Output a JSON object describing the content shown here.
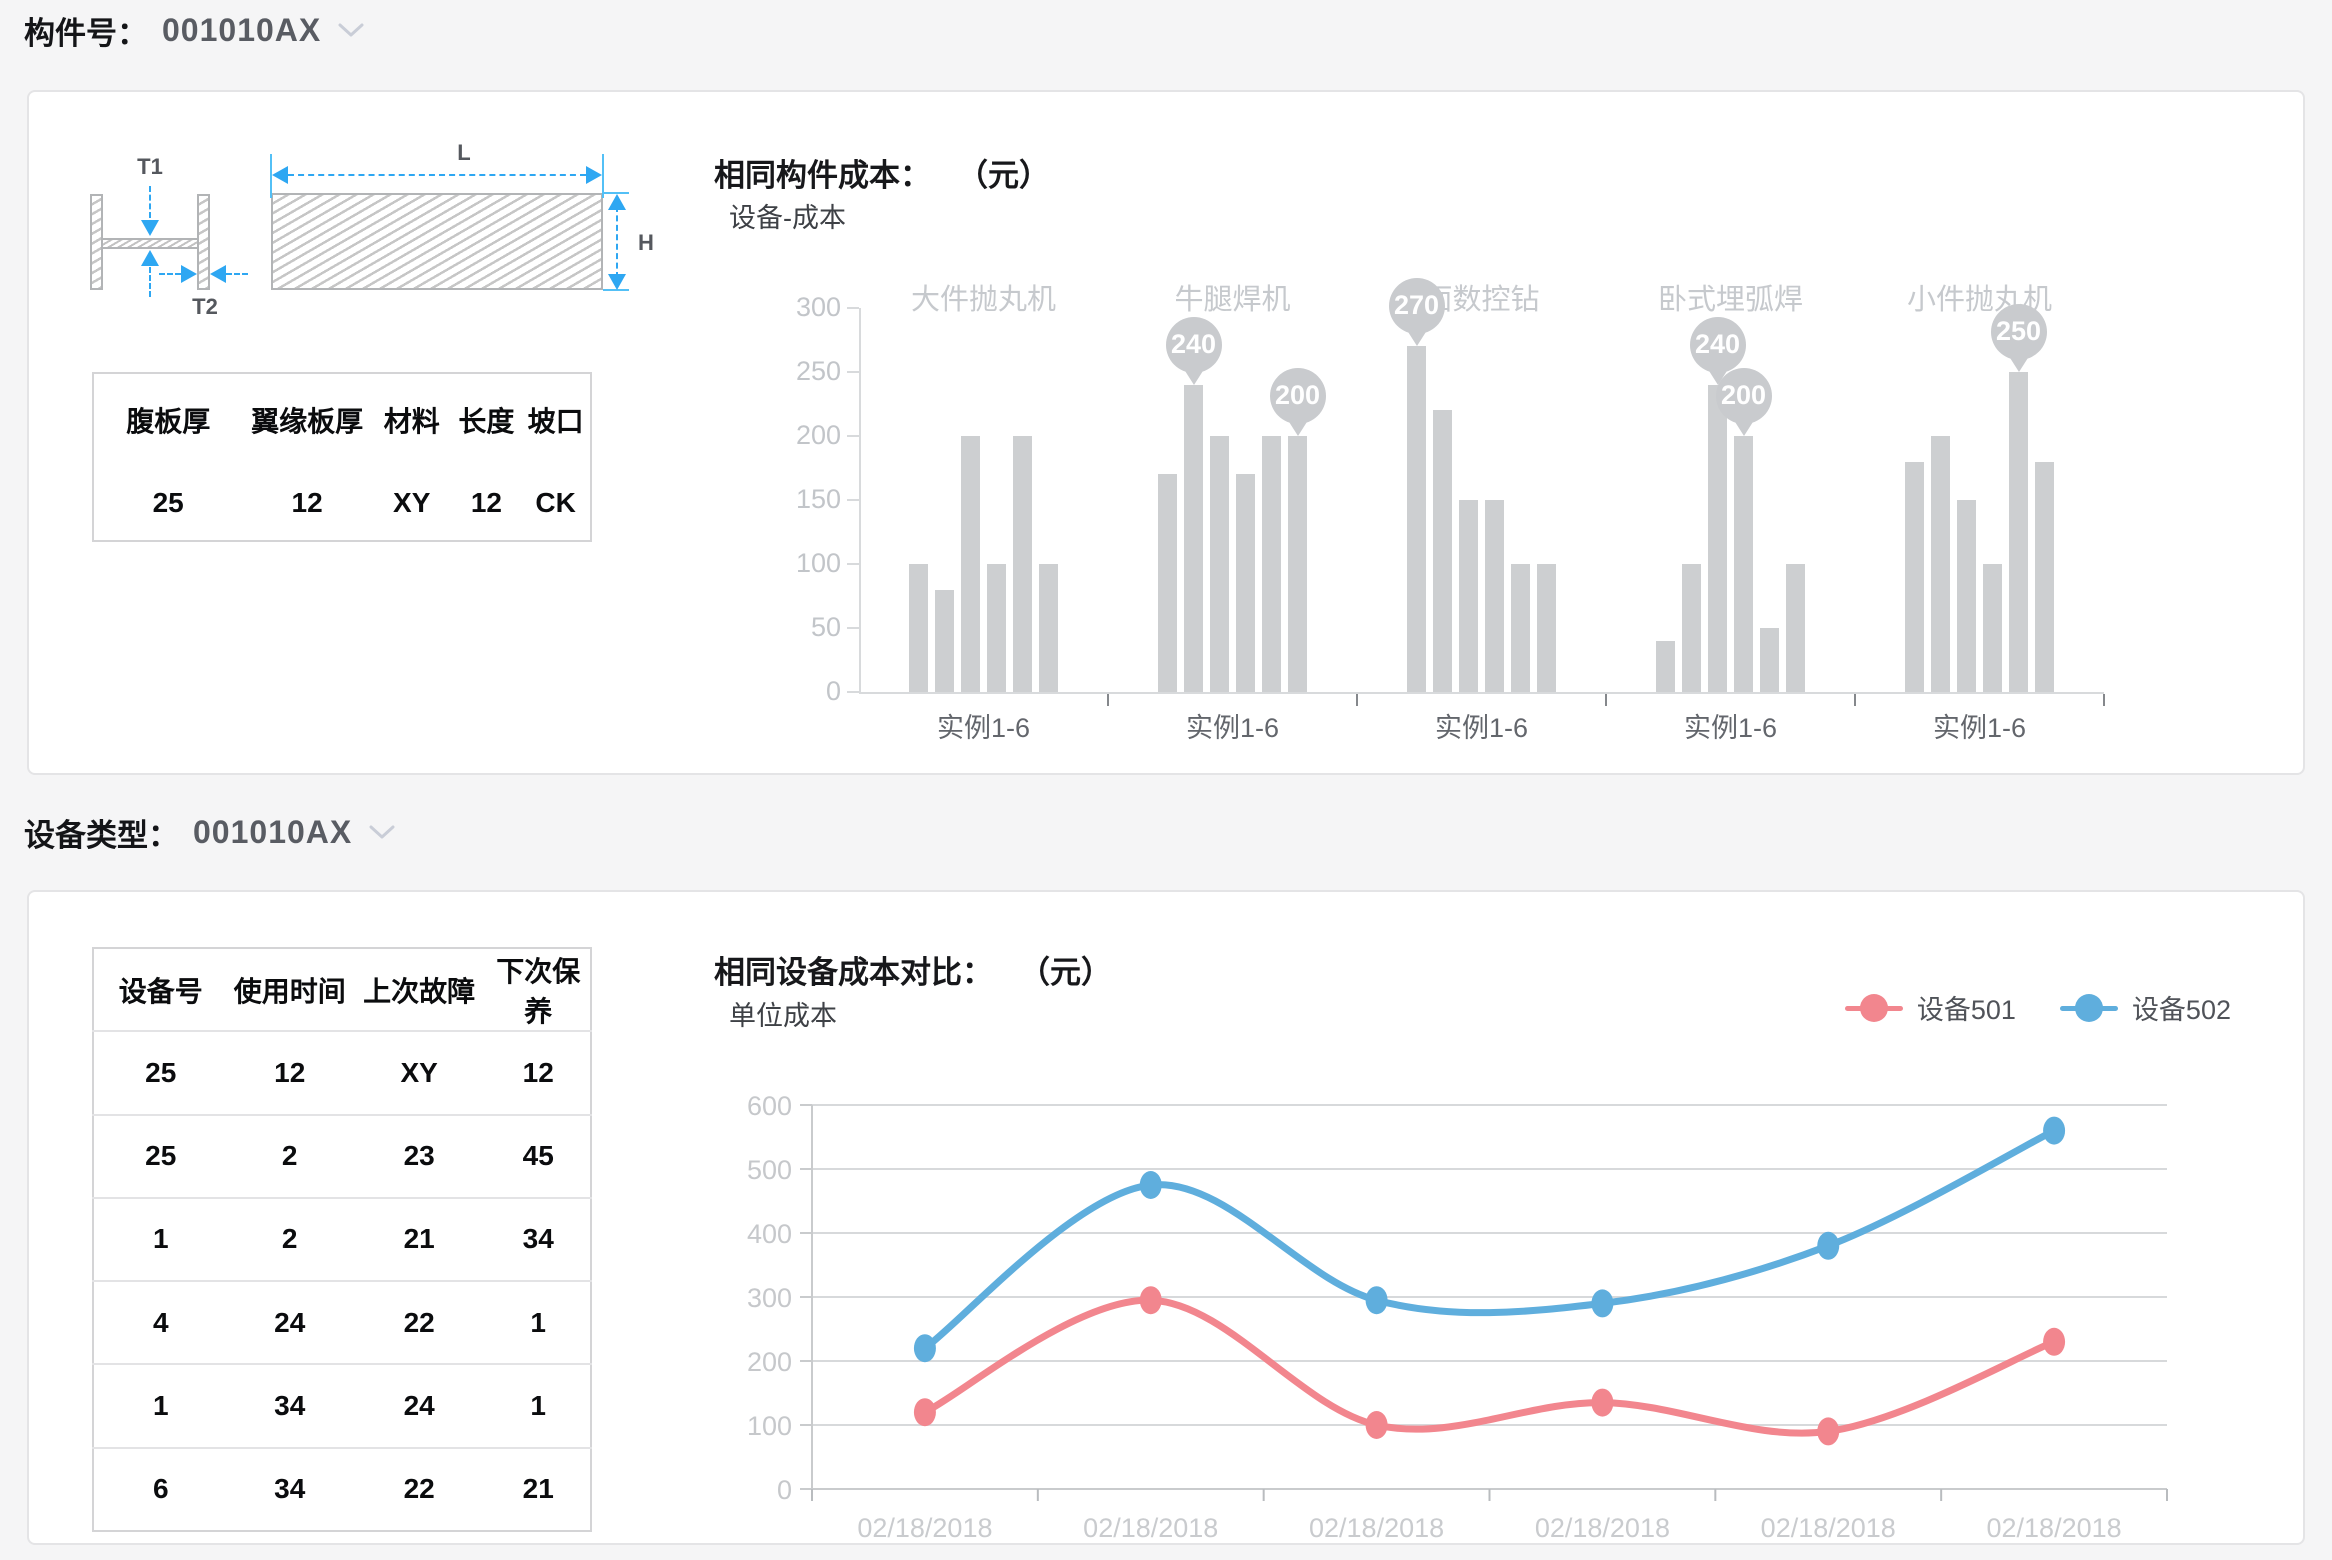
{
  "colors": {
    "accent_blue": "#2EA7F2",
    "bar_gray": "#CDCFD1",
    "callout_gray": "#C9CBCE",
    "series_red": "#F2868E",
    "series_blue": "#5FAEDD"
  },
  "section1": {
    "label": "构件号：",
    "value": "001010AX",
    "diagram": {
      "t1": "T1",
      "t2": "T2",
      "l": "L",
      "h": "H"
    },
    "table": {
      "headers": [
        "腹板厚",
        "翼缘板厚",
        "材料",
        "长度",
        "坡口"
      ],
      "rows": [
        [
          "25",
          "12",
          "XY",
          "12",
          "CK"
        ]
      ]
    },
    "chart_title": "相同构件成本：",
    "chart_unit": "（元）",
    "chart_subtitle": "设备-成本"
  },
  "section2": {
    "label": "设备类型：",
    "value": "001010AX",
    "table": {
      "headers": [
        "设备号",
        "使用时间",
        "上次故障",
        "下次保养"
      ],
      "rows": [
        [
          "25",
          "12",
          "XY",
          "12"
        ],
        [
          "25",
          "2",
          "23",
          "45"
        ],
        [
          "1",
          "2",
          "21",
          "34"
        ],
        [
          "4",
          "24",
          "22",
          "1"
        ],
        [
          "1",
          "34",
          "24",
          "1"
        ],
        [
          "6",
          "34",
          "22",
          "21"
        ]
      ]
    },
    "chart_title": "相同设备成本对比：",
    "chart_unit": "（元）",
    "chart_subtitle": "单位成本"
  },
  "chart_data": [
    {
      "type": "bar",
      "title": "相同构件成本：（元）",
      "subtitle": "设备-成本",
      "ylim": [
        0,
        300
      ],
      "yticks": [
        0,
        50,
        100,
        150,
        200,
        250,
        300
      ],
      "bar_color": "#CDCFD1",
      "grid": false,
      "groups": [
        {
          "name": "大件抛丸机",
          "xlabel": "实例1-6",
          "values": [
            100,
            80,
            200,
            100,
            200,
            100
          ],
          "callout_indices": []
        },
        {
          "name": "牛腿焊机",
          "xlabel": "实例1-6",
          "values": [
            170,
            240,
            200,
            170,
            200,
            200
          ],
          "callout_indices": [
            1,
            5
          ]
        },
        {
          "name": "面数控钻",
          "xlabel": "实例1-6",
          "values": [
            270,
            220,
            150,
            150,
            100,
            100
          ],
          "callout_indices": [
            0
          ]
        },
        {
          "name": "卧式埋弧焊",
          "xlabel": "实例1-6",
          "values": [
            40,
            100,
            240,
            200,
            50,
            100
          ],
          "callout_indices": [
            2,
            3
          ]
        },
        {
          "name": "小件抛丸机",
          "xlabel": "实例1-6",
          "values": [
            180,
            200,
            150,
            100,
            250,
            180
          ],
          "callout_indices": [
            4
          ]
        }
      ]
    },
    {
      "type": "line",
      "title": "相同设备成本对比：（元）",
      "subtitle": "单位成本",
      "ylim": [
        0,
        600
      ],
      "yticks": [
        0,
        100,
        200,
        300,
        400,
        500,
        600
      ],
      "x": [
        "02/18/2018",
        "02/18/2018",
        "02/18/2018",
        "02/18/2018",
        "02/18/2018",
        "02/18/2018"
      ],
      "smooth": true,
      "grid": true,
      "legend_position": "top-right",
      "series": [
        {
          "name": "设备501",
          "color": "#F2868E",
          "values": [
            120,
            295,
            100,
            135,
            90,
            230
          ]
        },
        {
          "name": "设备502",
          "color": "#5FAEDD",
          "values": [
            220,
            475,
            295,
            290,
            380,
            560
          ]
        }
      ]
    }
  ]
}
